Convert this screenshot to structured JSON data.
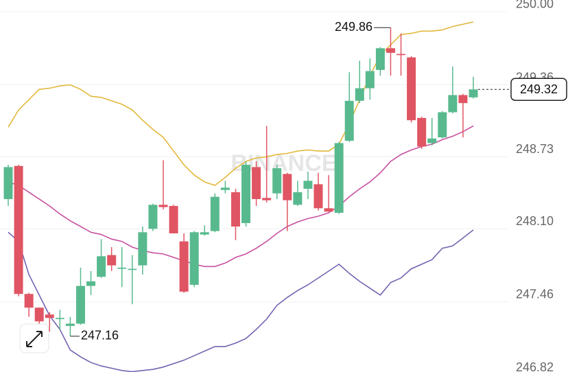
{
  "chart_data": {
    "type": "candlestick",
    "watermark": "BINANCE",
    "ylim": [
      246.847,
      250.102
    ],
    "yticks": [
      {
        "value": 250.0,
        "label": "250.00"
      },
      {
        "value": 249.36,
        "label": "249.36"
      },
      {
        "value": 248.73,
        "label": "248.73"
      },
      {
        "value": 248.1,
        "label": "248.10"
      },
      {
        "value": 247.46,
        "label": "247.46"
      },
      {
        "value": 246.82,
        "label": "246.82"
      }
    ],
    "grid": true,
    "up_color": "#58b98e",
    "down_color": "#e05563",
    "open": [
      248.36,
      248.65,
      247.53,
      247.41,
      247.35,
      247.31,
      247.25,
      247.27,
      247.6,
      247.68,
      247.87,
      247.75,
      247.74,
      247.78,
      248.1,
      248.31,
      248.3,
      247.99,
      247.61,
      248.05,
      248.08,
      248.44,
      248.42,
      248.15,
      248.64,
      248.37,
      248.41,
      248.58,
      248.31,
      248.45,
      248.49,
      248.28,
      248.24,
      248.87,
      249.22,
      249.33,
      249.49,
      249.68,
      249.63,
      249.6,
      249.07,
      248.85,
      248.9,
      249.12,
      249.27,
      249.25
    ],
    "high": [
      248.66,
      248.66,
      247.54,
      247.41,
      247.37,
      247.39,
      247.33,
      247.76,
      247.73,
      248.01,
      247.94,
      247.94,
      247.87,
      248.12,
      248.32,
      248.7,
      248.31,
      248.06,
      248.08,
      248.13,
      248.41,
      248.52,
      248.45,
      248.69,
      248.69,
      249.0,
      248.66,
      248.59,
      248.52,
      248.6,
      248.59,
      248.57,
      248.86,
      249.47,
      249.57,
      249.59,
      249.69,
      249.86,
      249.81,
      249.61,
      249.08,
      249.07,
      249.13,
      249.52,
      249.28,
      249.43
    ],
    "low": [
      248.3,
      247.51,
      247.33,
      247.27,
      247.2,
      247.22,
      247.16,
      247.26,
      247.52,
      247.67,
      247.73,
      247.59,
      247.44,
      247.7,
      248.08,
      248.27,
      248.06,
      247.54,
      247.59,
      248.04,
      248.07,
      248.41,
      248.0,
      248.12,
      248.3,
      248.33,
      248.36,
      248.08,
      248.3,
      248.36,
      248.26,
      248.25,
      248.23,
      248.86,
      249.2,
      249.23,
      249.44,
      249.44,
      249.44,
      249.03,
      248.8,
      248.83,
      248.89,
      249.11,
      248.9,
      249.24
    ],
    "close": [
      248.64,
      247.53,
      247.41,
      247.29,
      247.32,
      247.32,
      247.27,
      247.6,
      247.64,
      247.86,
      247.78,
      247.76,
      247.75,
      248.07,
      248.31,
      248.29,
      248.06,
      247.55,
      248.07,
      248.07,
      248.38,
      248.46,
      248.12,
      248.66,
      248.36,
      248.35,
      248.63,
      248.35,
      248.42,
      248.52,
      248.28,
      248.25,
      248.85,
      249.22,
      249.33,
      249.48,
      249.68,
      249.64,
      249.62,
      249.05,
      248.82,
      248.89,
      249.12,
      249.27,
      249.2,
      249.32
    ],
    "bands": [
      {
        "color": "#e2b83c",
        "values": [
          248.99,
          249.14,
          249.23,
          249.32,
          249.33,
          249.35,
          249.36,
          249.32,
          249.26,
          249.25,
          249.22,
          249.19,
          249.14,
          249.05,
          248.97,
          248.9,
          248.78,
          248.66,
          248.57,
          248.51,
          248.48,
          248.55,
          248.63,
          248.69,
          248.72,
          248.73,
          248.75,
          248.76,
          248.78,
          248.79,
          248.78,
          248.78,
          248.84,
          249.02,
          249.23,
          249.44,
          249.62,
          249.71,
          249.8,
          249.81,
          249.83,
          249.83,
          249.84,
          249.87,
          249.89,
          249.91
        ]
      },
      {
        "color": "#c8509f",
        "values": [
          248.51,
          248.48,
          248.42,
          248.36,
          248.3,
          248.23,
          248.17,
          248.12,
          248.07,
          248.05,
          248.01,
          247.99,
          247.94,
          247.91,
          247.89,
          247.88,
          247.85,
          247.82,
          247.79,
          247.77,
          247.77,
          247.8,
          247.85,
          247.88,
          247.93,
          247.99,
          248.06,
          248.12,
          248.16,
          248.19,
          248.21,
          248.24,
          248.3,
          248.38,
          248.45,
          248.51,
          248.59,
          248.69,
          248.75,
          248.79,
          248.82,
          248.84,
          248.88,
          248.91,
          248.95,
          249.0
        ]
      },
      {
        "color": "#7562b2",
        "values": [
          248.07,
          247.99,
          247.7,
          247.52,
          247.34,
          247.22,
          247.04,
          246.98,
          246.93,
          246.9,
          246.88,
          246.86,
          246.85,
          246.86,
          246.87,
          246.89,
          246.92,
          246.95,
          246.99,
          247.03,
          247.07,
          247.07,
          247.1,
          247.14,
          247.22,
          247.31,
          247.43,
          247.5,
          247.56,
          247.61,
          247.67,
          247.73,
          247.79,
          247.71,
          247.64,
          247.58,
          247.52,
          247.63,
          247.67,
          247.75,
          247.79,
          247.83,
          247.93,
          247.95,
          248.02,
          248.09
        ]
      }
    ],
    "high_label": {
      "value": 249.86,
      "label": "249.86"
    },
    "low_label": {
      "value": 247.16,
      "label": "247.16"
    },
    "last_price_label": {
      "value": 249.32,
      "label": "249.32"
    }
  }
}
